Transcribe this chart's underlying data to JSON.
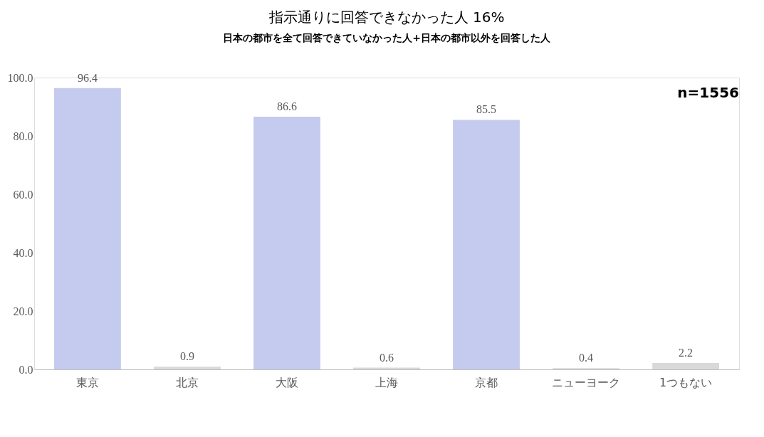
{
  "chart_data": {
    "type": "bar",
    "title": "指示通りに回答できなかった人 16%",
    "subtitle": "日本の都市を全て回答できていなかった人+日本の都市以外を回答した人",
    "categories": [
      "東京",
      "北京",
      "大阪",
      "上海",
      "京都",
      "ニューヨーク",
      "1つもない"
    ],
    "values": [
      96.4,
      0.9,
      86.6,
      0.6,
      85.5,
      0.4,
      2.2
    ],
    "colors": [
      "#c5cbee",
      "#d9d9d9",
      "#c5cbee",
      "#d9d9d9",
      "#c5cbee",
      "#d9d9d9",
      "#d9d9d9"
    ],
    "ylim": [
      0,
      100
    ],
    "yticks": [
      {
        "value": 0,
        "label": "0.0"
      },
      {
        "value": 20,
        "label": "20.0"
      },
      {
        "value": 40,
        "label": "40.0"
      },
      {
        "value": 60,
        "label": "60.0"
      },
      {
        "value": 80,
        "label": "80.0"
      },
      {
        "value": 100,
        "label": "100.0"
      }
    ],
    "grid": false,
    "data_labels": true,
    "annotations": [
      "n=1556"
    ]
  }
}
